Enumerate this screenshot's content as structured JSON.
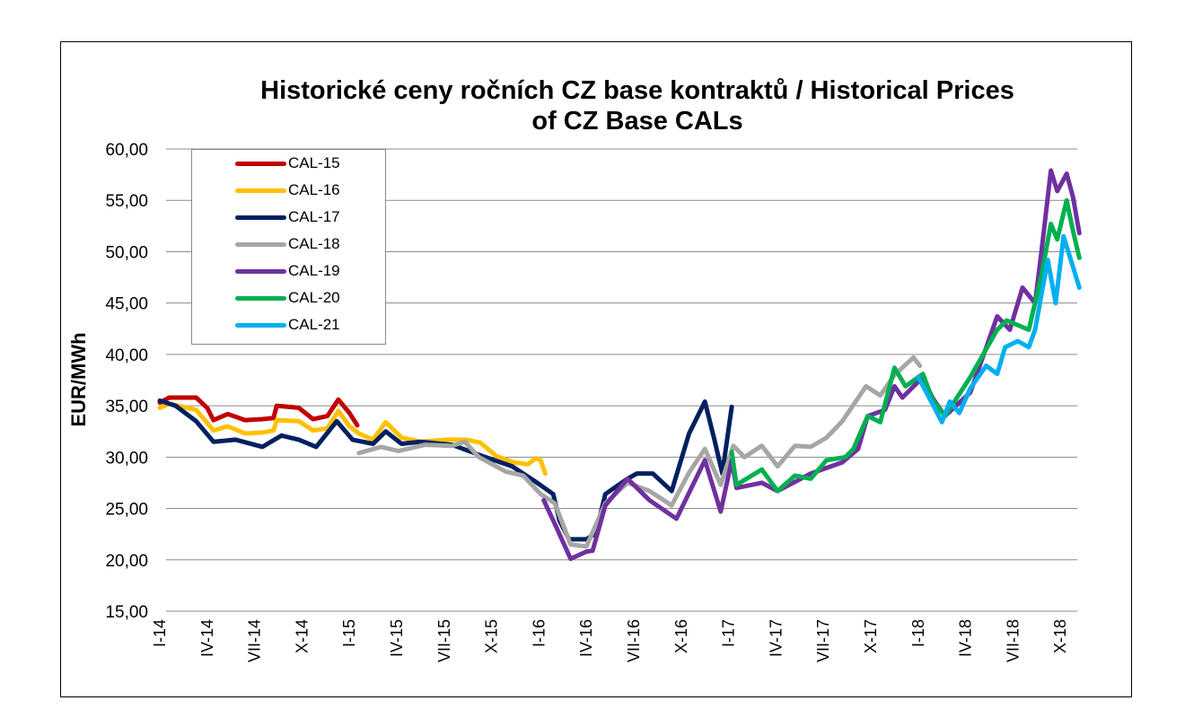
{
  "chart_data": {
    "type": "line",
    "title": [
      "Historické ceny ročních CZ base kontraktů / Historical Prices",
      "of CZ Base CALs"
    ],
    "xlabel": "",
    "ylabel": "EUR/MWh",
    "ylim": [
      15,
      60
    ],
    "yticks": [
      "15,00",
      "20,00",
      "25,00",
      "30,00",
      "35,00",
      "40,00",
      "45,00",
      "50,00",
      "55,00",
      "60,00"
    ],
    "xlim_months_from_jan_2014": [
      0,
      58.5
    ],
    "xticks": [
      "I-14",
      "IV-14",
      "VII-14",
      "X-14",
      "I-15",
      "IV-15",
      "VII-15",
      "X-15",
      "I-16",
      "IV-16",
      "VII-16",
      "X-16",
      "I-17",
      "IV-17",
      "VII-17",
      "X-17",
      "I-18",
      "IV-18",
      "VII-18",
      "X-18"
    ],
    "grid": true,
    "legend_placement": "top-left",
    "series": [
      {
        "name": "CAL-15",
        "color": "#C00000",
        "points": [
          [
            0,
            35.3
          ],
          [
            0.6,
            35.8
          ],
          [
            2.3,
            35.8
          ],
          [
            3,
            34.8
          ],
          [
            3.4,
            33.6
          ],
          [
            4.3,
            34.2
          ],
          [
            5.4,
            33.6
          ],
          [
            6.5,
            33.7
          ],
          [
            7.2,
            33.8
          ],
          [
            7.4,
            35
          ],
          [
            8.8,
            34.8
          ],
          [
            9.7,
            33.7
          ],
          [
            10.6,
            34
          ],
          [
            11.3,
            35.6
          ],
          [
            12,
            34.3
          ],
          [
            12.5,
            33.1
          ]
        ]
      },
      {
        "name": "CAL-16",
        "color": "#FFC000",
        "points": [
          [
            0,
            34.8
          ],
          [
            0.6,
            35.2
          ],
          [
            2.3,
            34.6
          ],
          [
            3.4,
            32.6
          ],
          [
            4.3,
            33
          ],
          [
            5.4,
            32.3
          ],
          [
            6.5,
            32.4
          ],
          [
            7.2,
            32.6
          ],
          [
            7.4,
            33.6
          ],
          [
            8.8,
            33.5
          ],
          [
            9.7,
            32.6
          ],
          [
            10.6,
            32.8
          ],
          [
            11.3,
            34.5
          ],
          [
            12,
            33
          ],
          [
            12.6,
            32.3
          ],
          [
            13.5,
            31.7
          ],
          [
            14.3,
            33.4
          ],
          [
            15.3,
            31.9
          ],
          [
            16.5,
            31.5
          ],
          [
            18.2,
            31.7
          ],
          [
            19.4,
            31.7
          ],
          [
            20.3,
            31.4
          ],
          [
            21.3,
            30.1
          ],
          [
            22.4,
            29.5
          ],
          [
            23.3,
            29.3
          ],
          [
            23.8,
            29.9
          ],
          [
            24.1,
            29.7
          ],
          [
            24.4,
            28.4
          ]
        ]
      },
      {
        "name": "CAL-17",
        "color": "#002060",
        "points": [
          [
            0,
            35.5
          ],
          [
            1,
            35
          ],
          [
            2.3,
            33.5
          ],
          [
            3.4,
            31.5
          ],
          [
            4.8,
            31.7
          ],
          [
            6.5,
            31
          ],
          [
            7.7,
            32.1
          ],
          [
            8.8,
            31.7
          ],
          [
            9.9,
            31
          ],
          [
            11.2,
            33.5
          ],
          [
            12.2,
            31.7
          ],
          [
            13.5,
            31.3
          ],
          [
            14.3,
            32.5
          ],
          [
            15.3,
            31.3
          ],
          [
            16.5,
            31.5
          ],
          [
            18.5,
            31.2
          ],
          [
            20.6,
            30
          ],
          [
            22.3,
            29.1
          ],
          [
            23.7,
            27.7
          ],
          [
            24.9,
            26.4
          ],
          [
            25.3,
            23.8
          ],
          [
            25.9,
            22
          ],
          [
            27,
            22
          ],
          [
            27.6,
            22.6
          ],
          [
            28.2,
            26.4
          ],
          [
            29.6,
            27.9
          ],
          [
            30.2,
            28.4
          ],
          [
            31.2,
            28.4
          ],
          [
            32.4,
            26.7
          ],
          [
            33.5,
            32.3
          ],
          [
            34.5,
            35.4
          ],
          [
            35.1,
            31.7
          ],
          [
            35.6,
            28.4
          ],
          [
            36.2,
            34.9
          ]
        ]
      },
      {
        "name": "CAL-18",
        "color": "#A6A6A6",
        "points": [
          [
            12.6,
            30.4
          ],
          [
            14,
            31
          ],
          [
            15.1,
            30.6
          ],
          [
            16.8,
            31.2
          ],
          [
            18.5,
            31.1
          ],
          [
            19.3,
            31.5
          ],
          [
            20.2,
            30
          ],
          [
            21.9,
            28.6
          ],
          [
            23,
            28.2
          ],
          [
            24.1,
            26.4
          ],
          [
            25,
            25.5
          ],
          [
            26,
            21.5
          ],
          [
            27,
            21.3
          ],
          [
            28.2,
            25.5
          ],
          [
            29.6,
            27.5
          ],
          [
            31,
            26.7
          ],
          [
            32.4,
            25.3
          ],
          [
            33.5,
            28.5
          ],
          [
            34.5,
            30.8
          ],
          [
            35.5,
            27.3
          ],
          [
            36.3,
            31.1
          ],
          [
            37,
            30
          ],
          [
            38.1,
            31.1
          ],
          [
            39.1,
            29.1
          ],
          [
            40.2,
            31.1
          ],
          [
            41.2,
            31
          ],
          [
            42.2,
            31.9
          ],
          [
            43.2,
            33.5
          ],
          [
            44.7,
            36.9
          ],
          [
            45.6,
            36
          ],
          [
            46.5,
            38
          ],
          [
            47.7,
            39.7
          ],
          [
            48.1,
            38.9
          ]
        ]
      },
      {
        "name": "CAL-19",
        "color": "#7030A0",
        "points": [
          [
            24.3,
            25.8
          ],
          [
            25,
            23.5
          ],
          [
            26,
            20.1
          ],
          [
            27,
            20.8
          ],
          [
            27.4,
            20.9
          ],
          [
            28.2,
            25.3
          ],
          [
            29.6,
            27.9
          ],
          [
            31,
            25.8
          ],
          [
            32.7,
            24
          ],
          [
            34.5,
            29.7
          ],
          [
            35.5,
            24.7
          ],
          [
            36.2,
            29.7
          ],
          [
            36.5,
            27
          ],
          [
            38.1,
            27.5
          ],
          [
            39.1,
            26.7
          ],
          [
            41.2,
            28.4
          ],
          [
            43.2,
            29.5
          ],
          [
            44.2,
            30.8
          ],
          [
            44.8,
            34
          ],
          [
            45.9,
            34.6
          ],
          [
            46.5,
            36.9
          ],
          [
            47,
            35.8
          ],
          [
            48.3,
            37.8
          ],
          [
            48.9,
            35.8
          ],
          [
            49.7,
            34
          ],
          [
            51.3,
            36.3
          ],
          [
            53,
            43.7
          ],
          [
            53.8,
            42.4
          ],
          [
            54.6,
            46.5
          ],
          [
            55.4,
            45
          ],
          [
            55.8,
            50
          ],
          [
            56.4,
            57.9
          ],
          [
            56.8,
            55.9
          ],
          [
            57.4,
            57.6
          ],
          [
            57.8,
            55.3
          ],
          [
            58.2,
            51.8
          ]
        ]
      },
      {
        "name": "CAL-20",
        "color": "#00B050",
        "points": [
          [
            36.2,
            30.5
          ],
          [
            36.5,
            27.3
          ],
          [
            38.1,
            28.8
          ],
          [
            39.1,
            26.7
          ],
          [
            40.2,
            28.2
          ],
          [
            41.2,
            27.9
          ],
          [
            42.2,
            29.7
          ],
          [
            43.4,
            30
          ],
          [
            43.9,
            30.8
          ],
          [
            44.8,
            34
          ],
          [
            45.6,
            33.4
          ],
          [
            46.5,
            38.7
          ],
          [
            47.2,
            36.9
          ],
          [
            48.3,
            38.1
          ],
          [
            48.9,
            35.6
          ],
          [
            49.7,
            34
          ],
          [
            51.3,
            37.8
          ],
          [
            53,
            42.4
          ],
          [
            53.6,
            43.3
          ],
          [
            55,
            42.4
          ],
          [
            55.8,
            47.7
          ],
          [
            56.4,
            52.7
          ],
          [
            56.8,
            51.2
          ],
          [
            57.4,
            55
          ],
          [
            57.8,
            52
          ],
          [
            58.2,
            49.4
          ]
        ]
      },
      {
        "name": "CAL-21",
        "color": "#00B0F0",
        "points": [
          [
            48,
            37.8
          ],
          [
            48.9,
            35.2
          ],
          [
            49.5,
            33.4
          ],
          [
            50,
            35.4
          ],
          [
            50.6,
            34.3
          ],
          [
            51.3,
            36.7
          ],
          [
            52.3,
            38.9
          ],
          [
            53,
            38.1
          ],
          [
            53.5,
            40.7
          ],
          [
            54.3,
            41.3
          ],
          [
            55,
            40.7
          ],
          [
            55.4,
            42.4
          ],
          [
            56.2,
            49.2
          ],
          [
            56.7,
            45
          ],
          [
            57.2,
            51.5
          ],
          [
            57.6,
            49.5
          ],
          [
            58.2,
            46.5
          ]
        ]
      }
    ]
  }
}
